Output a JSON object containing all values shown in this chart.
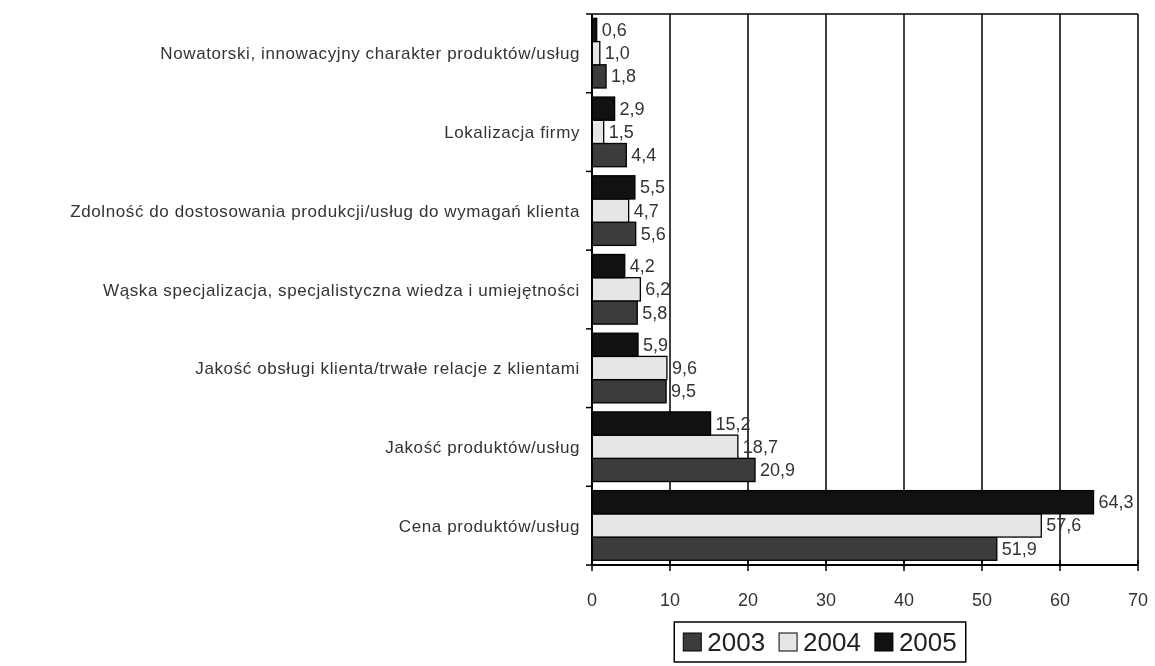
{
  "chart_data": {
    "type": "bar",
    "orientation": "horizontal",
    "categories": [
      "Nowatorski, innowacyjny charakter produktów/usług",
      "Lokalizacja firmy",
      "Zdolność do dostosowania produkcji/usług do wymagań klienta",
      "Wąska specjalizacja, specjalistyczna wiedza i umiejętności",
      "Jakość obsługi klienta/trwałe relacje z klientami",
      "Jakość produktów/usług",
      "Cena produktów/usług"
    ],
    "series": [
      {
        "name": "2003",
        "color": "#3c3c3c",
        "values": [
          1.8,
          4.4,
          5.6,
          5.8,
          9.5,
          20.9,
          51.9
        ],
        "value_labels": [
          "1,8",
          "4,4",
          "5,6",
          "5,8",
          "9,5",
          "20,9",
          "51,9"
        ]
      },
      {
        "name": "2004",
        "color": "#e6e6e6",
        "values": [
          1.0,
          1.5,
          4.7,
          6.2,
          9.6,
          18.7,
          57.6
        ],
        "value_labels": [
          "1,0",
          "1,5",
          "4,7",
          "6,2",
          "9,6",
          "18,7",
          "57,6"
        ]
      },
      {
        "name": "2005",
        "color": "#111111",
        "values": [
          0.6,
          2.9,
          5.5,
          4.2,
          5.9,
          15.2,
          64.3
        ],
        "value_labels": [
          "0,6",
          "2,9",
          "5,5",
          "4,2",
          "5,9",
          "15,2",
          "64,3"
        ]
      }
    ],
    "xlim": [
      0,
      70
    ],
    "xticks": [
      0,
      10,
      20,
      30,
      40,
      50,
      60,
      70
    ],
    "grid": "x",
    "legend": "bottom"
  }
}
